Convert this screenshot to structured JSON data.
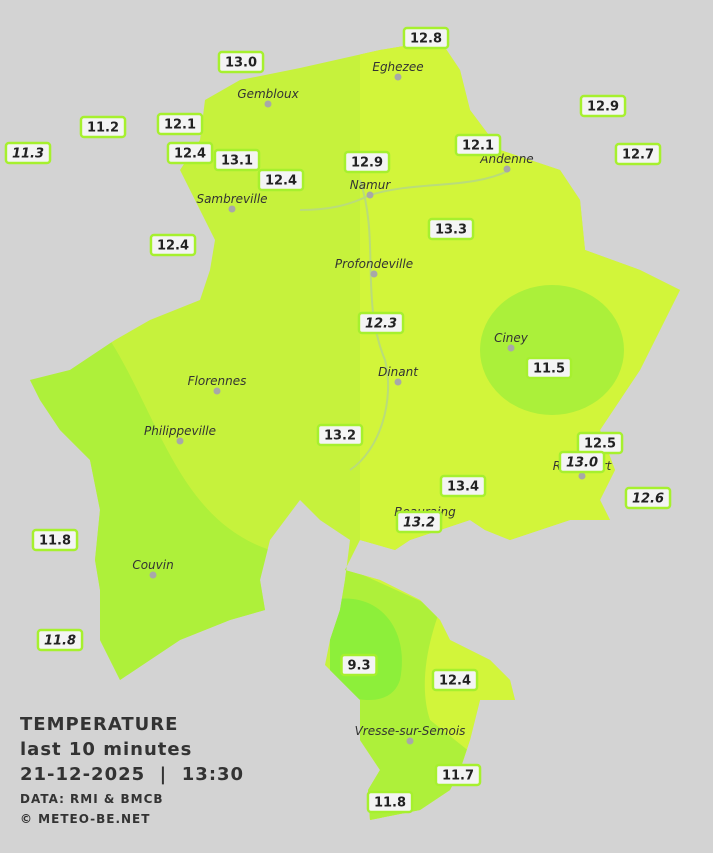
{
  "map": {
    "towns": [
      "Eghezee",
      "Gembloux",
      "Andenne",
      "Namur",
      "Sambreville",
      "Profondeville",
      "Ciney",
      "Dinant",
      "Florennes",
      "Philippeville",
      "Rochefort",
      "Beauraing",
      "Couvin",
      "Vresse-sur-Semois"
    ],
    "stations": [
      {
        "value": "13.0"
      },
      {
        "value": "12.8"
      },
      {
        "value": "12.9"
      },
      {
        "value": "11.2"
      },
      {
        "value": "12.1"
      },
      {
        "value": "12.1"
      },
      {
        "value": "11.3",
        "italic": true
      },
      {
        "value": "12.4"
      },
      {
        "value": "13.1"
      },
      {
        "value": "12.9"
      },
      {
        "value": "12.7"
      },
      {
        "value": "12.4"
      },
      {
        "value": "13.3"
      },
      {
        "value": "12.4"
      },
      {
        "value": "12.3",
        "italic": true
      },
      {
        "value": "11.5"
      },
      {
        "value": "13.2"
      },
      {
        "value": "12.5"
      },
      {
        "value": "13.0",
        "italic": true
      },
      {
        "value": "12.6",
        "italic": true
      },
      {
        "value": "13.4"
      },
      {
        "value": "13.2",
        "italic": true
      },
      {
        "value": "11.8"
      },
      {
        "value": "11.8",
        "italic": true
      },
      {
        "value": "9.3"
      },
      {
        "value": "12.4"
      },
      {
        "value": "11.7"
      },
      {
        "value": "11.8"
      }
    ],
    "legend": {
      "title": "TEMPERATURE",
      "subtitle": "last 10 minutes",
      "datetime": "21-12-2025  |  13:30",
      "source": "DATA: RMI & BMCB",
      "credit": "© METEO-BE.NET"
    }
  }
}
